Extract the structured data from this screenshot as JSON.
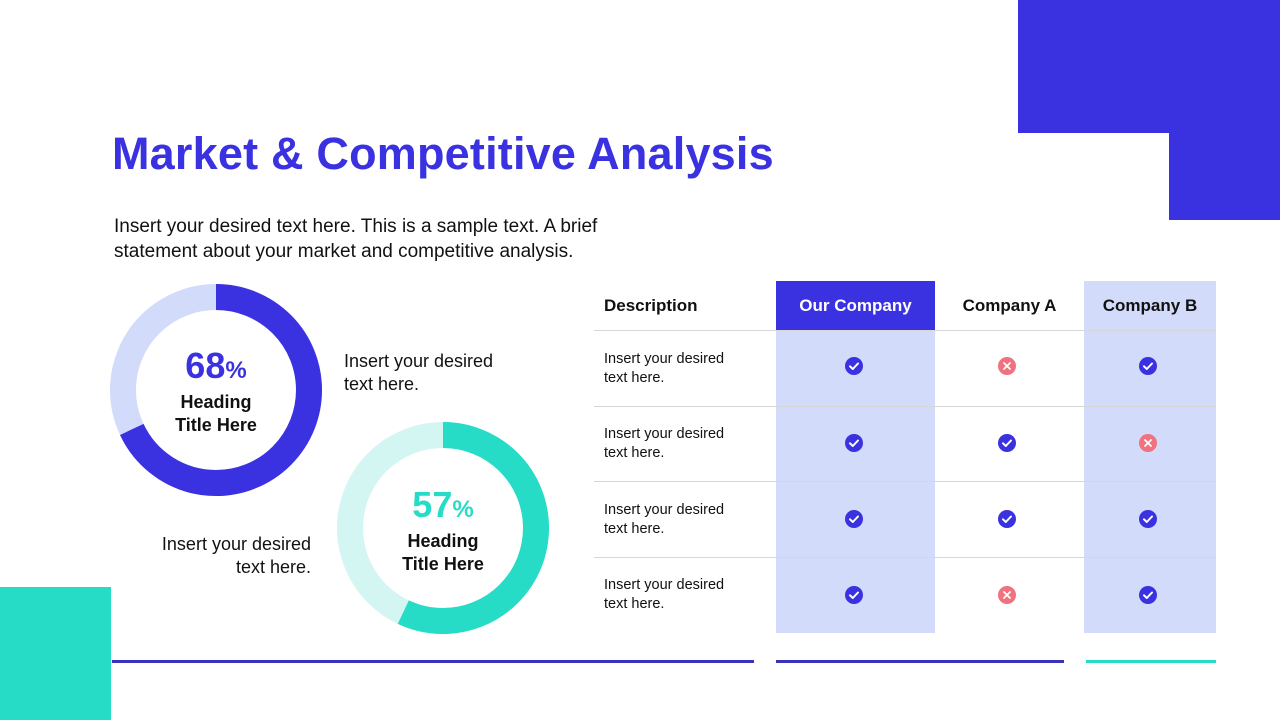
{
  "colors": {
    "primary": "#3a32e0",
    "teal": "#27dcc6",
    "light_blue": "#d3dbfa",
    "light_teal": "#d4f6f2",
    "red": "#f0727f",
    "line_blue": "#3a32b8"
  },
  "title": "Market & Competitive Analysis",
  "intro": "Insert your desired text here. This is a sample text. A brief statement about your market and competitive analysis.",
  "donuts": [
    {
      "value": 68,
      "percent_sign": "%",
      "heading_line1": "Heading",
      "heading_line2": "Title Here",
      "side_line1": "Insert your desired",
      "side_line2": "text here."
    },
    {
      "value": 57,
      "percent_sign": "%",
      "heading_line1": "Heading",
      "heading_line2": "Title Here",
      "side_line1": "Insert your desired",
      "side_line2": "text here."
    }
  ],
  "table": {
    "headers": [
      "Description",
      "Our Company",
      "Company A",
      "Company B"
    ],
    "rows": [
      {
        "desc_line1": "Insert your desired",
        "desc_line2": "text here.",
        "marks": [
          "check-icon",
          "cross-icon",
          "check-icon"
        ]
      },
      {
        "desc_line1": "Insert your desired",
        "desc_line2": "text here.",
        "marks": [
          "check-icon",
          "check-icon",
          "cross-icon"
        ]
      },
      {
        "desc_line1": "Insert your desired",
        "desc_line2": "text here.",
        "marks": [
          "check-icon",
          "check-icon",
          "check-icon"
        ]
      },
      {
        "desc_line1": "Insert your desired",
        "desc_line2": "text here.",
        "marks": [
          "check-icon",
          "cross-icon",
          "check-icon"
        ]
      }
    ]
  }
}
